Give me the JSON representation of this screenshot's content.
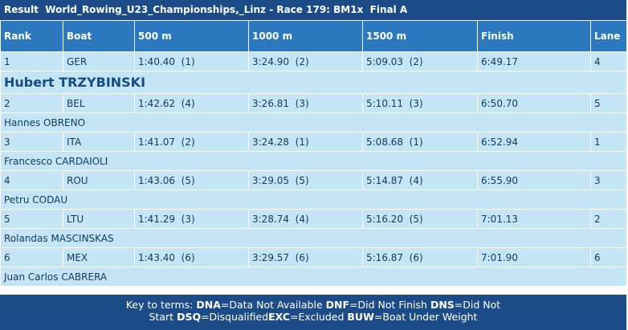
{
  "header": {
    "title": "Result  World_Rowing_U23_Championships,_Linz - Race 179: BM1x  Final A"
  },
  "table": {
    "columns": [
      "Rank",
      "Boat",
      "500 m",
      "1000 m",
      "1500 m",
      "Finish",
      "Lane"
    ],
    "rows": [
      {
        "cells": [
          "1",
          "GER",
          "1:40.40  (1)",
          "3:24.90  (2)",
          "5:09.03  (2)",
          "6:49.17",
          "4"
        ],
        "name": "Hubert TRZYBINSKI"
      },
      {
        "cells": [
          "2",
          "BEL",
          "1:42.62  (4)",
          "3:26.81  (3)",
          "5:10.11  (3)",
          "6:50.70",
          "5"
        ],
        "name": "Hannes OBRENO"
      },
      {
        "cells": [
          "3",
          "ITA",
          "1:41.07  (2)",
          "3:24.28  (1)",
          "5:08.68  (1)",
          "6:52.94",
          "1"
        ],
        "name": "Francesco CARDAIOLI"
      },
      {
        "cells": [
          "4",
          "ROU",
          "1:43.06  (5)",
          "3:29.05  (5)",
          "5:14.87  (4)",
          "6:55.90",
          "3"
        ],
        "name": "Petru CODAU"
      },
      {
        "cells": [
          "5",
          "LTU",
          "1:41.29  (3)",
          "3:28.74  (4)",
          "5:16.20  (5)",
          "7:01.13",
          "2"
        ],
        "name": "Rolandas MASCINSKAS"
      },
      {
        "cells": [
          "6",
          "MEX",
          "1:43.40  (6)",
          "3:29.57  (6)",
          "5:16.87  (6)",
          "7:01.90",
          "6"
        ],
        "name": "Juan Carlos CABRERA"
      }
    ]
  },
  "footer": {
    "label": "Key to terms: ",
    "terms": [
      {
        "code": "DNA",
        "text": "=Data Not Available "
      },
      {
        "code": "DNF",
        "text": "=Did Not Finish "
      },
      {
        "code": "DNS",
        "text": "=Did Not Start "
      },
      {
        "code": "DSQ",
        "text": "=Disqualified"
      },
      {
        "code": "EXC",
        "text": "=Excluded "
      },
      {
        "code": "BUW",
        "text": "=Boat Under Weight"
      }
    ]
  }
}
